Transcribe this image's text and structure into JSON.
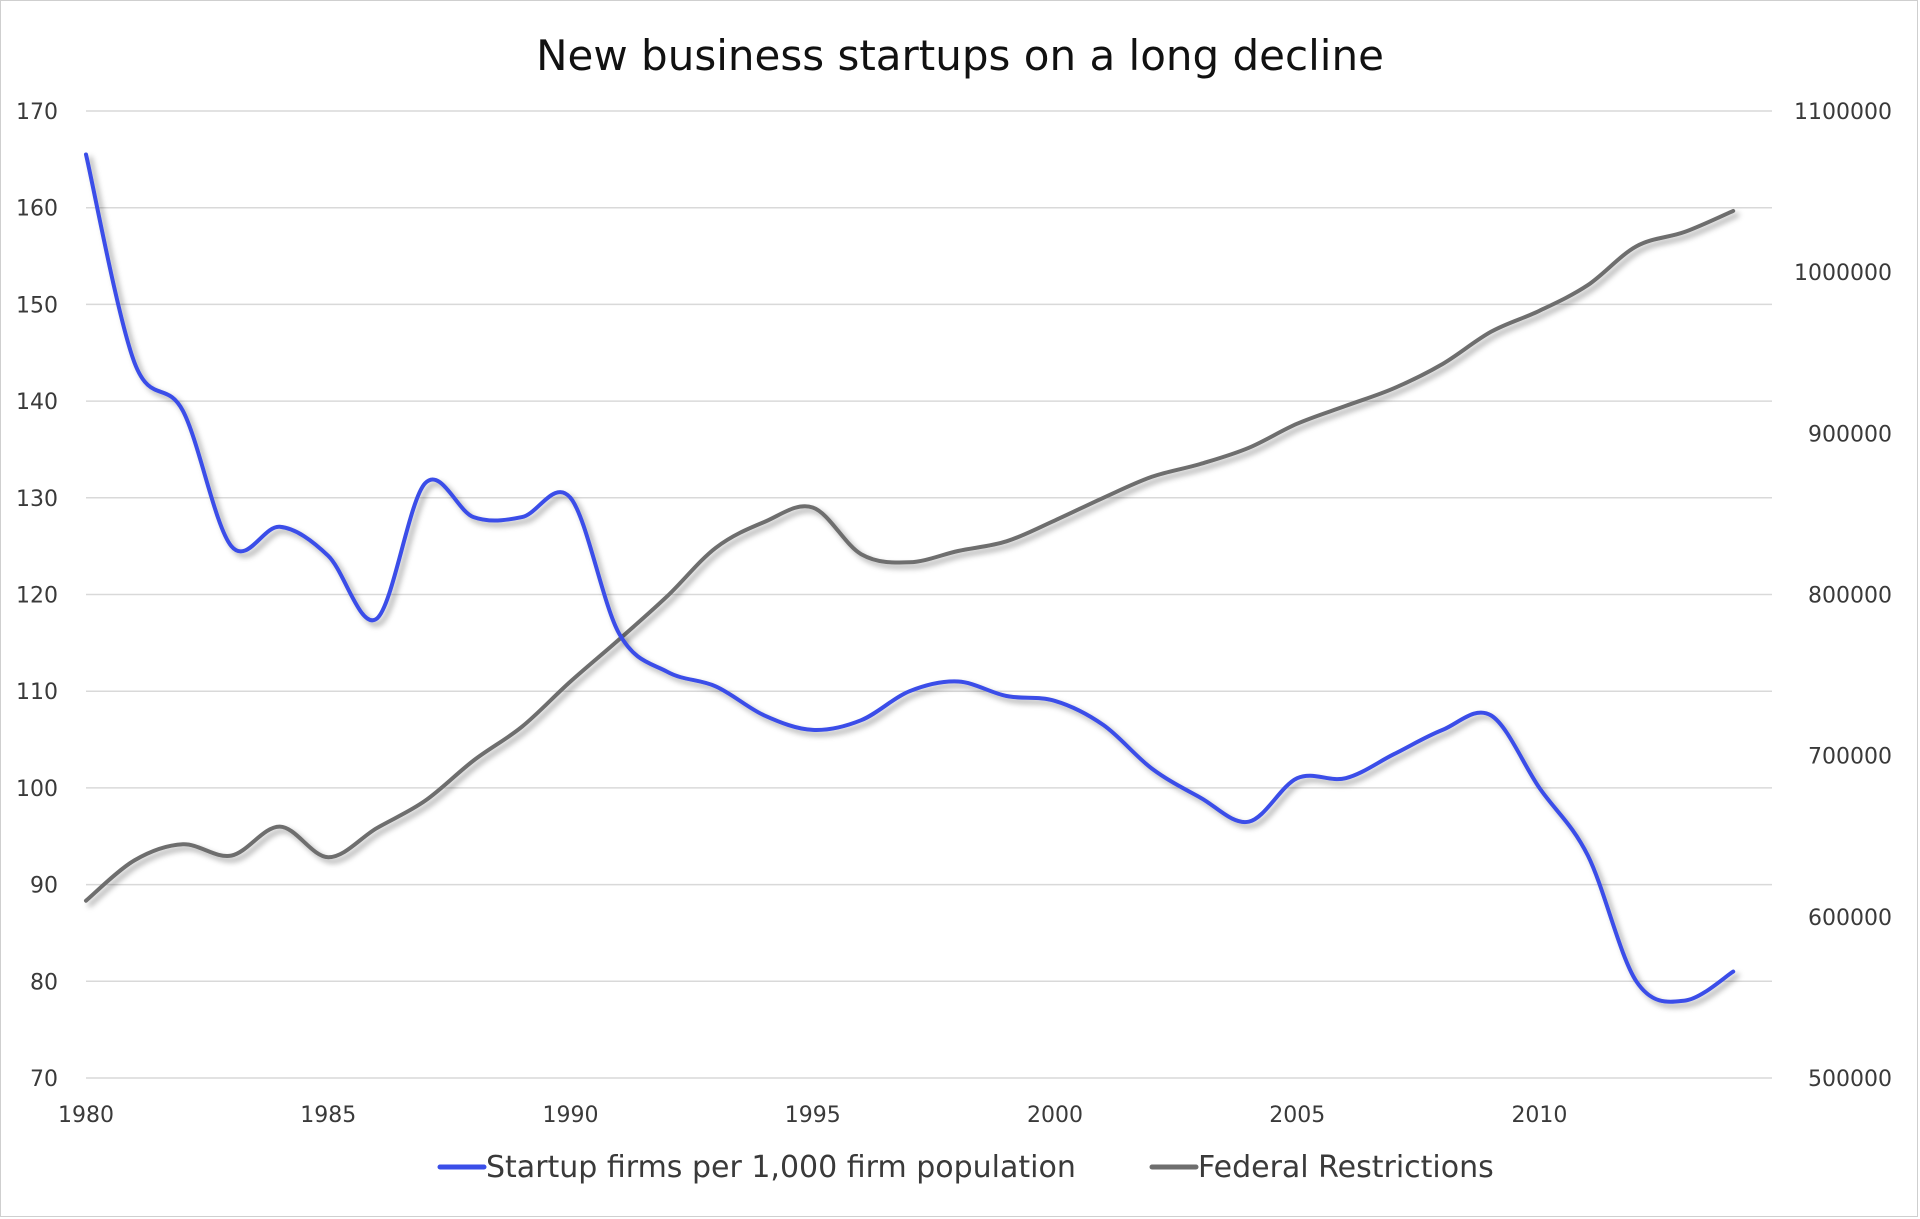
{
  "chart_data": {
    "type": "line",
    "title": "New business startups on a long decline",
    "xlabel": "",
    "ylabel": "",
    "y2label": "",
    "x": [
      1980,
      1981,
      1982,
      1983,
      1984,
      1985,
      1986,
      1987,
      1988,
      1989,
      1990,
      1991,
      1992,
      1993,
      1994,
      1995,
      1996,
      1997,
      1998,
      1999,
      2000,
      2001,
      2002,
      2003,
      2004,
      2005,
      2006,
      2007,
      2008,
      2009,
      2010,
      2011,
      2012,
      2013,
      2014
    ],
    "xticks": [
      "1980",
      "1985",
      "1990",
      "1995",
      "2000",
      "2005",
      "2010"
    ],
    "xlim": [
      1980,
      2014.8
    ],
    "ylim": [
      70,
      170
    ],
    "yticks": [
      "70",
      "80",
      "90",
      "100",
      "110",
      "120",
      "130",
      "140",
      "150",
      "160",
      "170"
    ],
    "y2lim": [
      500000,
      1100000
    ],
    "y2ticks": [
      "500000",
      "600000",
      "700000",
      "800000",
      "900000",
      "1000000",
      "1100000"
    ],
    "grid": true,
    "legend_position": "bottom",
    "series": [
      {
        "name": "Startup firms per 1,000 firm population",
        "axis": "left",
        "color": "#3a4ee8",
        "values": [
          165.5,
          144,
          139,
          125,
          127,
          124,
          117.5,
          131.5,
          128,
          128,
          130,
          116,
          112,
          110.5,
          107.5,
          106,
          107,
          110,
          111,
          109.5,
          109,
          106.5,
          102,
          99,
          96.5,
          101,
          101,
          103.5,
          106,
          107.5,
          100,
          93,
          80,
          78,
          81
        ]
      },
      {
        "name": "Federal Restrictions",
        "axis": "right",
        "color": "#6e6e6e",
        "values": [
          610000,
          635000,
          645000,
          638000,
          656000,
          637000,
          655000,
          672000,
          697000,
          718000,
          746000,
          772000,
          799000,
          829000,
          845000,
          854000,
          825000,
          820000,
          827000,
          833000,
          846000,
          860000,
          873000,
          881000,
          891000,
          906000,
          917000,
          928000,
          943000,
          963000,
          976000,
          992000,
          1016000,
          1025000,
          1038000
        ]
      }
    ]
  }
}
